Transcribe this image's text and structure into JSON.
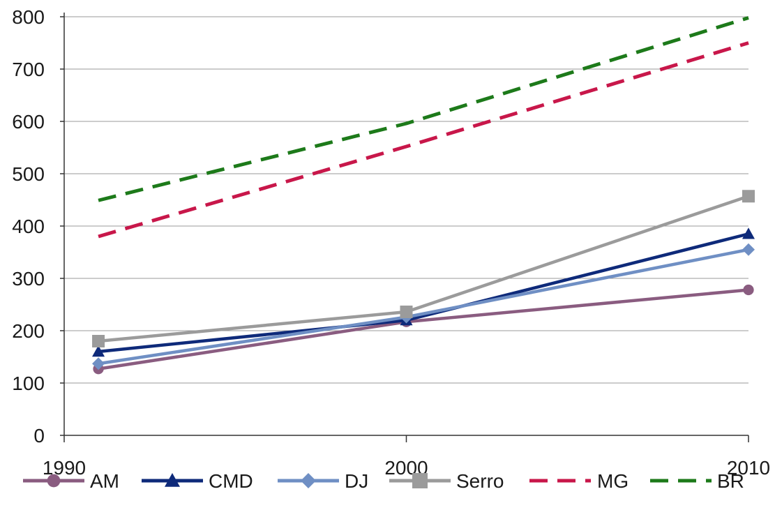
{
  "chart_data": {
    "type": "line",
    "x": [
      1991,
      2000,
      2010
    ],
    "xticks": [
      "1990",
      "2000",
      "2010"
    ],
    "xlim": [
      1990,
      2010
    ],
    "ylim": [
      0,
      800
    ],
    "yticks": [
      "0",
      "100",
      "200",
      "300",
      "400",
      "500",
      "600",
      "700",
      "800"
    ],
    "grid": true,
    "legend_position": "bottom",
    "series": [
      {
        "name": "AM",
        "values": [
          127,
          217,
          278
        ],
        "color": "#8a5c80",
        "dash": false,
        "marker": "circle"
      },
      {
        "name": "CMD",
        "values": [
          160,
          220,
          385
        ],
        "color": "#0e2a7a",
        "dash": false,
        "marker": "triangle"
      },
      {
        "name": "DJ",
        "values": [
          137,
          226,
          355
        ],
        "color": "#6f8fc4",
        "dash": false,
        "marker": "diamond"
      },
      {
        "name": "Serro",
        "values": [
          180,
          236,
          457
        ],
        "color": "#9b9b9b",
        "dash": false,
        "marker": "square"
      },
      {
        "name": "MG",
        "values": [
          380,
          552,
          750
        ],
        "color": "#c8174a",
        "dash": true,
        "marker": "none"
      },
      {
        "name": "BR",
        "values": [
          449,
          596,
          798
        ],
        "color": "#1d7a1a",
        "dash": true,
        "marker": "none"
      }
    ]
  }
}
